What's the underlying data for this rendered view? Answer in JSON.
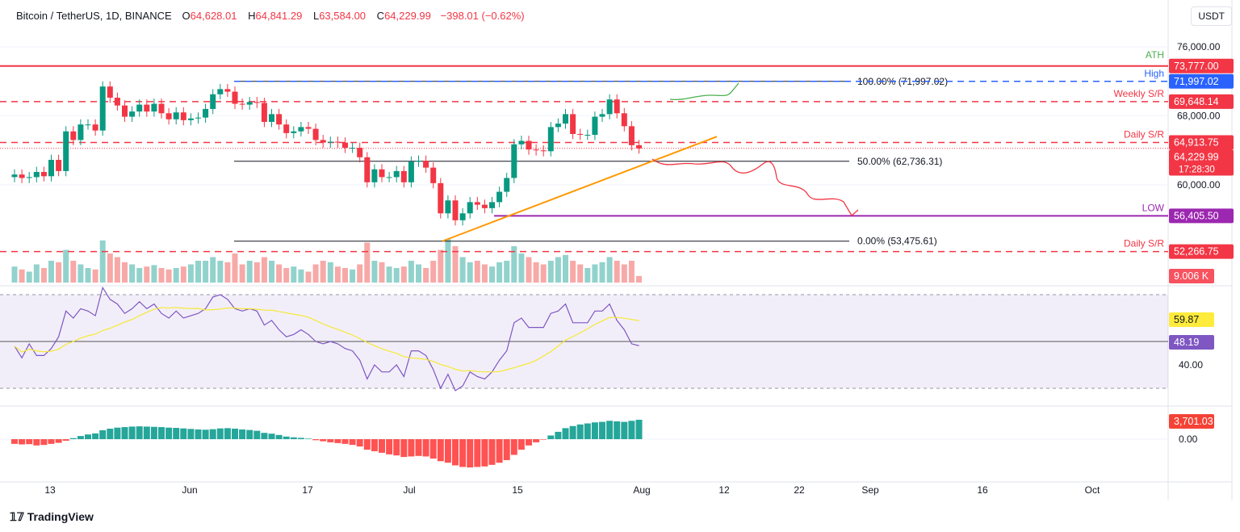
{
  "header": {
    "symbol": "Bitcoin / TetherUS, 1D, BINANCE",
    "open_label": "O",
    "open": "64,628.01",
    "high_label": "H",
    "high": "64,841.29",
    "low_label": "L",
    "low": "63,584.00",
    "close_label": "C",
    "close": "64,229.99",
    "change": "−398.01 (−0.62%)",
    "currency": "USDT"
  },
  "price_axis": {
    "ticks": [
      "76,000.00",
      "68,000.00",
      "60,000.00"
    ]
  },
  "levels": [
    {
      "label": "ATH",
      "value": "73,777.00",
      "price": 73777,
      "color": "#f23645",
      "label_color": "#4caf50",
      "style": "solid"
    },
    {
      "label": "High",
      "value": "71,997.02",
      "price": 71997.02,
      "color": "#2962ff",
      "label_color": "#2962ff",
      "style": "dashed"
    },
    {
      "label": "Weekly S/R",
      "value": "69,648.14",
      "price": 69648.14,
      "color": "#f23645",
      "label_color": "#f23645",
      "style": "dashed"
    },
    {
      "label": "Daily S/R",
      "value": "64,913.75",
      "price": 64913.75,
      "color": "#f23645",
      "label_color": "#f23645",
      "style": "dashed"
    },
    {
      "label": "LOW",
      "value": "56,405.50",
      "price": 56405.5,
      "color": "#9c27b0",
      "label_color": "#9c27b0",
      "style": "solid"
    },
    {
      "label": "Daily S/R",
      "value": "52,266.75",
      "price": 52266.75,
      "color": "#f23645",
      "label_color": "#f23645",
      "style": "dashed"
    }
  ],
  "last_price": {
    "value": "64,229.99",
    "countdown": "17:28:30",
    "color": "#f23645"
  },
  "volume_label": "9.006 K",
  "fib": [
    {
      "label": "100.00% (71,997.02)",
      "price": 71997.02
    },
    {
      "label": "50.00% (62,736.31)",
      "price": 62736.31
    },
    {
      "label": "0.00% (53,475.61)",
      "price": 53475.61
    }
  ],
  "rsi": {
    "value": "59.87",
    "value2": "48.19",
    "tick": "40.00",
    "ma_color": "#f5e934",
    "rsi_color": "#7e57c2"
  },
  "macd": {
    "value": "3,701.03",
    "tick": "0.00"
  },
  "time_axis": [
    "13",
    "Jun",
    "17",
    "Jul",
    "15",
    "Aug",
    "12",
    "22",
    "Sep",
    "16",
    "Oct"
  ],
  "brand": "TradingView",
  "colors": {
    "up": "#089981",
    "down": "#f23645"
  },
  "chart_data": {
    "type": "candlestick",
    "start_date": "May 8",
    "closes": [
      61200,
      60800,
      60900,
      61500,
      61000,
      62900,
      61600,
      66200,
      65200,
      67000,
      67000,
      66300,
      71400,
      70100,
      69200,
      67900,
      68500,
      69300,
      68500,
      69400,
      68300,
      67600,
      68400,
      67500,
      67700,
      67800,
      68800,
      70500,
      71100,
      70800,
      69400,
      69300,
      69600,
      69500,
      67300,
      68200,
      67000,
      66000,
      66200,
      66700,
      66500,
      65200,
      64900,
      65000,
      64900,
      64300,
      64300,
      63200,
      60300,
      61800,
      60900,
      60900,
      61600,
      60300,
      62700,
      62800,
      62000,
      60200,
      56700,
      58200,
      55900,
      56700,
      58000,
      57700,
      57300,
      58000,
      59200,
      60800,
      64700,
      65100,
      64100,
      64000,
      63900,
      66700,
      67100,
      68200,
      65900,
      65800,
      65800,
      67900,
      68200,
      69900,
      68300,
      66800,
      64600,
      64229.99
    ],
    "volume_k": [
      22,
      18,
      15,
      25,
      20,
      30,
      28,
      45,
      30,
      25,
      20,
      18,
      58,
      40,
      35,
      28,
      25,
      20,
      22,
      24,
      20,
      18,
      20,
      22,
      25,
      30,
      30,
      35,
      30,
      28,
      40,
      25,
      30,
      28,
      35,
      30,
      25,
      20,
      22,
      18,
      15,
      25,
      30,
      28,
      22,
      20,
      18,
      25,
      55,
      30,
      28,
      22,
      20,
      22,
      30,
      25,
      20,
      30,
      45,
      60,
      50,
      35,
      28,
      30,
      25,
      22,
      28,
      30,
      50,
      40,
      35,
      28,
      25,
      30,
      35,
      38,
      30,
      25,
      20,
      25,
      28,
      35,
      30,
      25,
      30,
      9.006
    ],
    "rsi": [
      48,
      43,
      49,
      44,
      44,
      47,
      52,
      63,
      60,
      64,
      63,
      61,
      73,
      68,
      66,
      62,
      64,
      67,
      64,
      66,
      62,
      60,
      63,
      60,
      61,
      62,
      64,
      69,
      70,
      68,
      64,
      63,
      64,
      63,
      57,
      59,
      55,
      52,
      53,
      55,
      53,
      50,
      49,
      50,
      49,
      47,
      46,
      42,
      34,
      40,
      37,
      37,
      40,
      35,
      46,
      46,
      44,
      38,
      30,
      36,
      29,
      31,
      37,
      35,
      34,
      37,
      42,
      46,
      58,
      60,
      56,
      56,
      56,
      62,
      63,
      66,
      58,
      58,
      58,
      63,
      63,
      66,
      59,
      55,
      49,
      48.19
    ],
    "macd_hist": [
      -900,
      -1000,
      -950,
      -1200,
      -1100,
      -900,
      -700,
      -300,
      200,
      600,
      900,
      1100,
      1700,
      2000,
      2200,
      2300,
      2400,
      2450,
      2400,
      2350,
      2300,
      2200,
      2150,
      2050,
      1950,
      1850,
      1800,
      1900,
      2050,
      2100,
      2000,
      1850,
      1750,
      1600,
      1200,
      1050,
      800,
      500,
      350,
      250,
      100,
      -200,
      -400,
      -600,
      -750,
      -900,
      -1100,
      -1400,
      -2000,
      -2300,
      -2600,
      -2900,
      -3100,
      -3400,
      -3300,
      -3200,
      -3300,
      -3700,
      -4200,
      -4500,
      -5000,
      -5300,
      -5400,
      -5300,
      -5200,
      -4900,
      -4500,
      -4000,
      -3000,
      -2000,
      -1200,
      -600,
      -100,
      700,
      1400,
      2100,
      2500,
      2800,
      3000,
      3200,
      3300,
      3500,
      3400,
      3300,
      3500,
      3701.03
    ],
    "price_range": [
      50000,
      78000
    ]
  }
}
